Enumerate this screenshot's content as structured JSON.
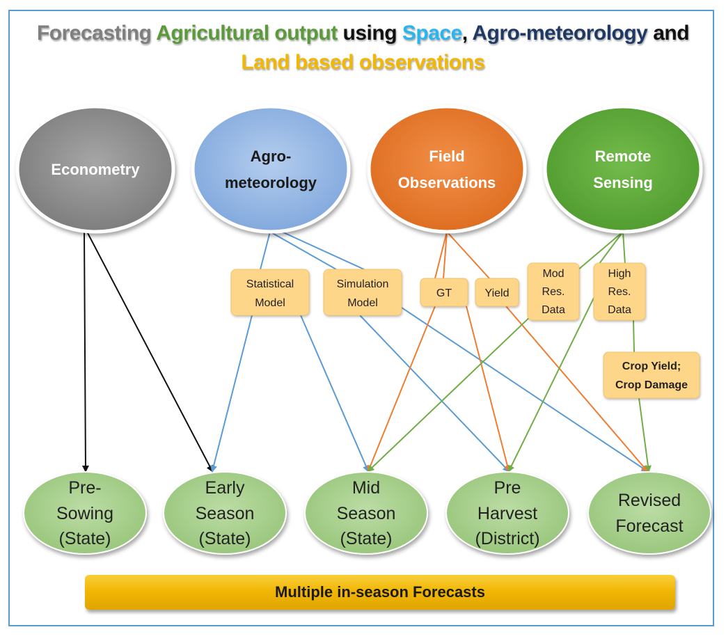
{
  "title": {
    "part1": "Forecasting",
    "part2": "Agricultural output",
    "part3": "using",
    "part4": "Space",
    "part5": ",",
    "part6": "Agro-meteorology",
    "part7": "and",
    "line2": "Land based observations"
  },
  "colors": {
    "title_gray": "#7f7f7f",
    "title_green": "#5b9a3a",
    "title_cyan": "#29b6f0",
    "title_navy": "#1f3864",
    "title_black": "#111111",
    "title_gold": "#f2b705",
    "econometry": "#8c8c8c",
    "agromet": "#8fb4e3",
    "field": "#e8782d",
    "remote": "#5ea83a",
    "forecast_node": "#a9d18e",
    "box": "#fdd68a",
    "arrow_black": "#111111",
    "arrow_blue": "#5b9bd5",
    "arrow_orange": "#ed7d31",
    "arrow_green": "#70ad47"
  },
  "sources": [
    {
      "id": "econometry",
      "line1": "Econometry",
      "line2": ""
    },
    {
      "id": "agromet",
      "line1": "Agro-",
      "line2": "meteorology"
    },
    {
      "id": "field",
      "line1": "Field",
      "line2": "Observations"
    },
    {
      "id": "remote",
      "line1": "Remote",
      "line2": "Sensing"
    }
  ],
  "boxes": [
    {
      "id": "statistical",
      "lines": [
        "Statistical",
        "Model"
      ]
    },
    {
      "id": "simulation",
      "lines": [
        "Simulation",
        "Model"
      ]
    },
    {
      "id": "gt",
      "lines": [
        "GT"
      ]
    },
    {
      "id": "yield",
      "lines": [
        "Yield"
      ]
    },
    {
      "id": "modres",
      "lines": [
        "Mod",
        "Res.",
        "Data"
      ]
    },
    {
      "id": "highres",
      "lines": [
        "High",
        "Res.",
        "Data"
      ]
    },
    {
      "id": "cropyield",
      "lines": [
        "Crop Yield;",
        "Crop Damage"
      ]
    }
  ],
  "forecasts": [
    {
      "id": "presowing",
      "lines": [
        "Pre-",
        "Sowing",
        "(State)"
      ]
    },
    {
      "id": "early",
      "lines": [
        "Early",
        "Season",
        "(State)"
      ]
    },
    {
      "id": "mid",
      "lines": [
        "Mid",
        "Season",
        "(State)"
      ]
    },
    {
      "id": "preharvest",
      "lines": [
        "Pre",
        "Harvest",
        "(District)"
      ]
    },
    {
      "id": "revised",
      "lines": [
        "Revised",
        "Forecast"
      ]
    }
  ],
  "banner": "Multiple in-season Forecasts"
}
